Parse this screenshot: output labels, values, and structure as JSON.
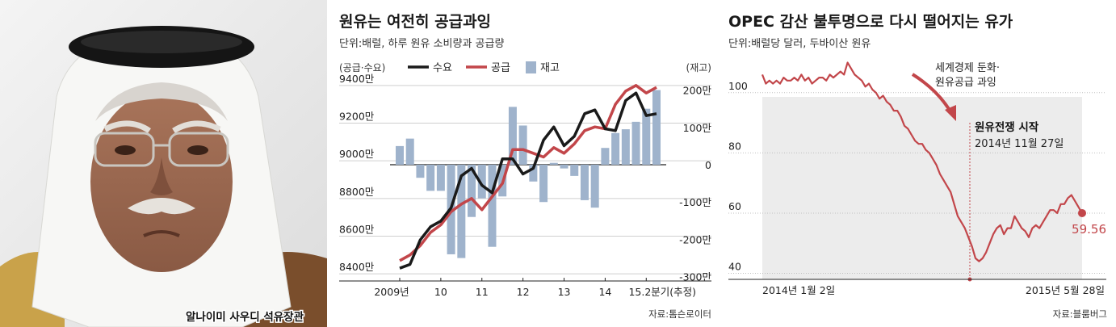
{
  "photo": {
    "caption": "알나이미 사우디 석유장관"
  },
  "chart_data": [
    {
      "type": "bar+line",
      "title": "원유는 여전히 공급과잉",
      "subtitle": "단위:배럴, 하루 원유 소비량과 공급량",
      "left_axis_label": "(공급·수요)",
      "right_axis_label": "(재고)",
      "left_ticks": [
        "9400만",
        "9200만",
        "9000만",
        "8800만",
        "8600만",
        "8400만"
      ],
      "left_tick_values": [
        9400,
        9200,
        9000,
        8800,
        8600,
        8400
      ],
      "left_ylim": [
        8375,
        9425
      ],
      "right_ticks": [
        "200만",
        "100만",
        "0",
        "-100만",
        "-200만",
        "-300만"
      ],
      "right_tick_values": [
        200,
        100,
        0,
        -100,
        -200,
        -300
      ],
      "right_ylim": [
        -305,
        225
      ],
      "x_labels": [
        "2009년",
        "10",
        "11",
        "12",
        "13",
        "14",
        "15.2분기(추정)"
      ],
      "x_label_positions": [
        0,
        4,
        8,
        12,
        16,
        20,
        24
      ],
      "legend": [
        {
          "name": "수요",
          "color": "#1a1a1a",
          "kind": "line"
        },
        {
          "name": "공급",
          "color": "#c2464a",
          "kind": "line"
        },
        {
          "name": "재고",
          "color": "#9fb3cc",
          "kind": "bar"
        }
      ],
      "series": [
        {
          "name": "수요",
          "unit": "만 배럴",
          "values": [
            8430,
            8450,
            8580,
            8650,
            8680,
            8750,
            8920,
            8960,
            8870,
            8830,
            9010,
            9010,
            8930,
            8960,
            9110,
            9180,
            9080,
            9130,
            9250,
            9270,
            9170,
            9160,
            9320,
            9360,
            9240,
            9250
          ]
        },
        {
          "name": "공급",
          "unit": "만 배럴",
          "values": [
            8470,
            8500,
            8550,
            8620,
            8660,
            8730,
            8770,
            8800,
            8740,
            8810,
            8880,
            9060,
            9060,
            9040,
            9020,
            9070,
            9040,
            9090,
            9160,
            9180,
            9170,
            9300,
            9370,
            9400,
            9360,
            9390
          ]
        },
        {
          "name": "재고",
          "unit": "만 배럴",
          "values": [
            50,
            70,
            -35,
            -70,
            -70,
            -240,
            -250,
            -140,
            -90,
            -220,
            -85,
            155,
            105,
            -45,
            -100,
            5,
            -10,
            -30,
            -95,
            -115,
            45,
            85,
            95,
            115,
            150,
            200
          ]
        }
      ],
      "source": "자료:톰슨로이터"
    },
    {
      "type": "line",
      "title": "OPEC 감산 불투명으로 다시 떨어지는 유가",
      "subtitle": "단위:배럴당 달러, 두바이산 원유",
      "y_ticks": [
        "100",
        "80",
        "60",
        "40"
      ],
      "y_tick_values": [
        100,
        80,
        60,
        40
      ],
      "ylim": [
        38,
        112
      ],
      "x_labels": [
        "2014년 1월 2일",
        "2015년 5월 28일"
      ],
      "series": [
        {
          "name": "두바이유",
          "values": [
            106,
            103,
            104,
            103,
            104,
            103,
            105,
            104,
            104,
            105,
            104,
            106,
            104,
            105,
            103,
            104,
            105,
            105,
            104,
            106,
            105,
            106,
            107,
            106,
            110,
            108,
            106,
            105,
            104,
            102,
            103,
            101,
            100,
            98,
            99,
            97,
            96,
            94,
            94,
            92,
            89,
            88,
            86,
            84,
            83,
            83,
            81,
            80,
            78,
            76,
            73,
            71,
            69,
            67,
            63,
            59,
            57,
            55,
            52,
            49,
            45,
            44,
            45,
            47,
            50,
            53,
            55,
            56,
            53,
            55,
            55,
            59,
            57,
            55,
            54,
            52,
            55,
            56,
            55,
            57,
            59,
            61,
            61,
            60,
            63,
            63,
            65,
            66,
            64,
            62,
            60
          ]
        }
      ],
      "annotations": [
        {
          "text_lines": [
            "세계경제 둔화·",
            "원유공급 과잉"
          ]
        },
        {
          "title": "원유전쟁 시작",
          "date": "2014년 11월 27일"
        }
      ],
      "end_label": "59.56",
      "source": "자료:블룸버그"
    }
  ],
  "colors": {
    "demand": "#1a1a1a",
    "supply": "#c2464a",
    "stock": "#9fb3cc",
    "oil": "#c2464a",
    "panel": "#ececec"
  }
}
